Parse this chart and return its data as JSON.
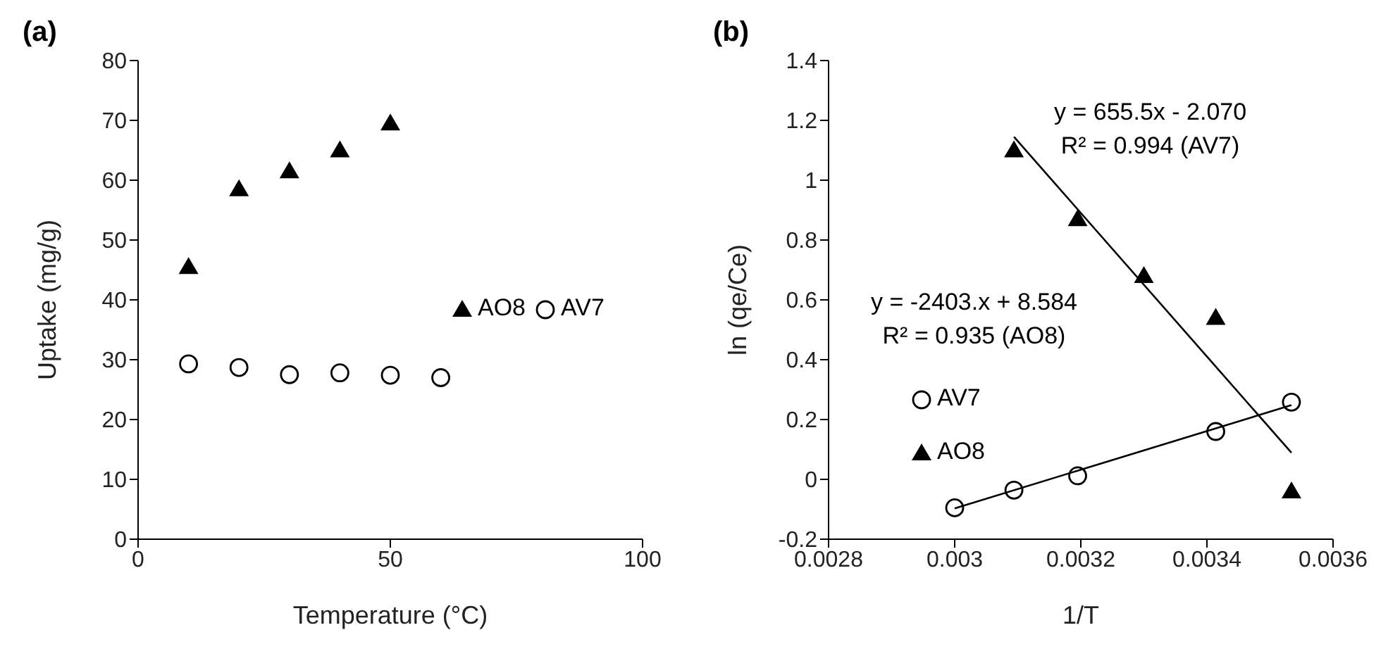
{
  "chart_data": [
    {
      "type": "scatter",
      "title": "(a)",
      "xlabel": "Temperature (°C)",
      "ylabel": "Uptake (mg/g)",
      "xlim": [
        0,
        100
      ],
      "xticks": [
        0,
        50,
        100
      ],
      "ylim": [
        0,
        80
      ],
      "yticks": [
        0,
        10,
        20,
        30,
        40,
        50,
        60,
        70,
        80
      ],
      "grid": false,
      "legend": "right",
      "series": [
        {
          "name": "AO8",
          "color": "#000000",
          "marker": "triangle",
          "x": [
            10,
            20,
            30,
            40,
            50
          ],
          "values": [
            45.5,
            58.5,
            61.5,
            65,
            69.5
          ]
        },
        {
          "name": "AV7",
          "color": "#000000",
          "marker": "circle",
          "x": [
            10,
            20,
            30,
            40,
            50,
            60
          ],
          "values": [
            29.3,
            28.7,
            27.5,
            27.8,
            27.4,
            27.0
          ]
        }
      ]
    },
    {
      "type": "scatter",
      "title": "(b)",
      "xlabel": "1/T",
      "ylabel": "ln (qe/Ce)",
      "xlim": [
        0.0028,
        0.0036
      ],
      "xticks": [
        0.0028,
        0.003,
        0.0032,
        0.0034,
        0.0036
      ],
      "ylim": [
        -0.2,
        1.4
      ],
      "yticks": [
        -0.2,
        0,
        0.2,
        0.4,
        0.6,
        0.8,
        1,
        1.2,
        1.4
      ],
      "grid": false,
      "legend": "left",
      "annotations": [
        "y = 655.5x - 2.070\nR² = 0.994 (AV7)",
        "y = -2403.x + 8.584\nR² = 0.935 (AO8)"
      ],
      "series": [
        {
          "name": "AV7",
          "color": "#000000",
          "marker": "circle",
          "x": [
            0.003,
            0.003094,
            0.003195,
            0.003414,
            0.003534
          ],
          "values": [
            -0.095,
            -0.036,
            0.012,
            0.16,
            0.258
          ]
        },
        {
          "name": "AO8",
          "color": "#000000",
          "marker": "triangle",
          "x": [
            0.003094,
            0.003195,
            0.0033,
            0.003414,
            0.003534
          ],
          "values": [
            1.1,
            0.87,
            0.68,
            0.54,
            -0.04
          ]
        },
        {
          "type": "line",
          "color": "#000000",
          "marker": "none",
          "line_style": "solid",
          "x": [
            0.003,
            0.003534
          ],
          "values": [
            -0.097,
            0.248
          ]
        },
        {
          "type": "line",
          "color": "#000000",
          "marker": "none",
          "line_style": "solid",
          "x": [
            0.003094,
            0.003534
          ],
          "values": [
            1.145,
            0.089
          ]
        }
      ]
    }
  ]
}
